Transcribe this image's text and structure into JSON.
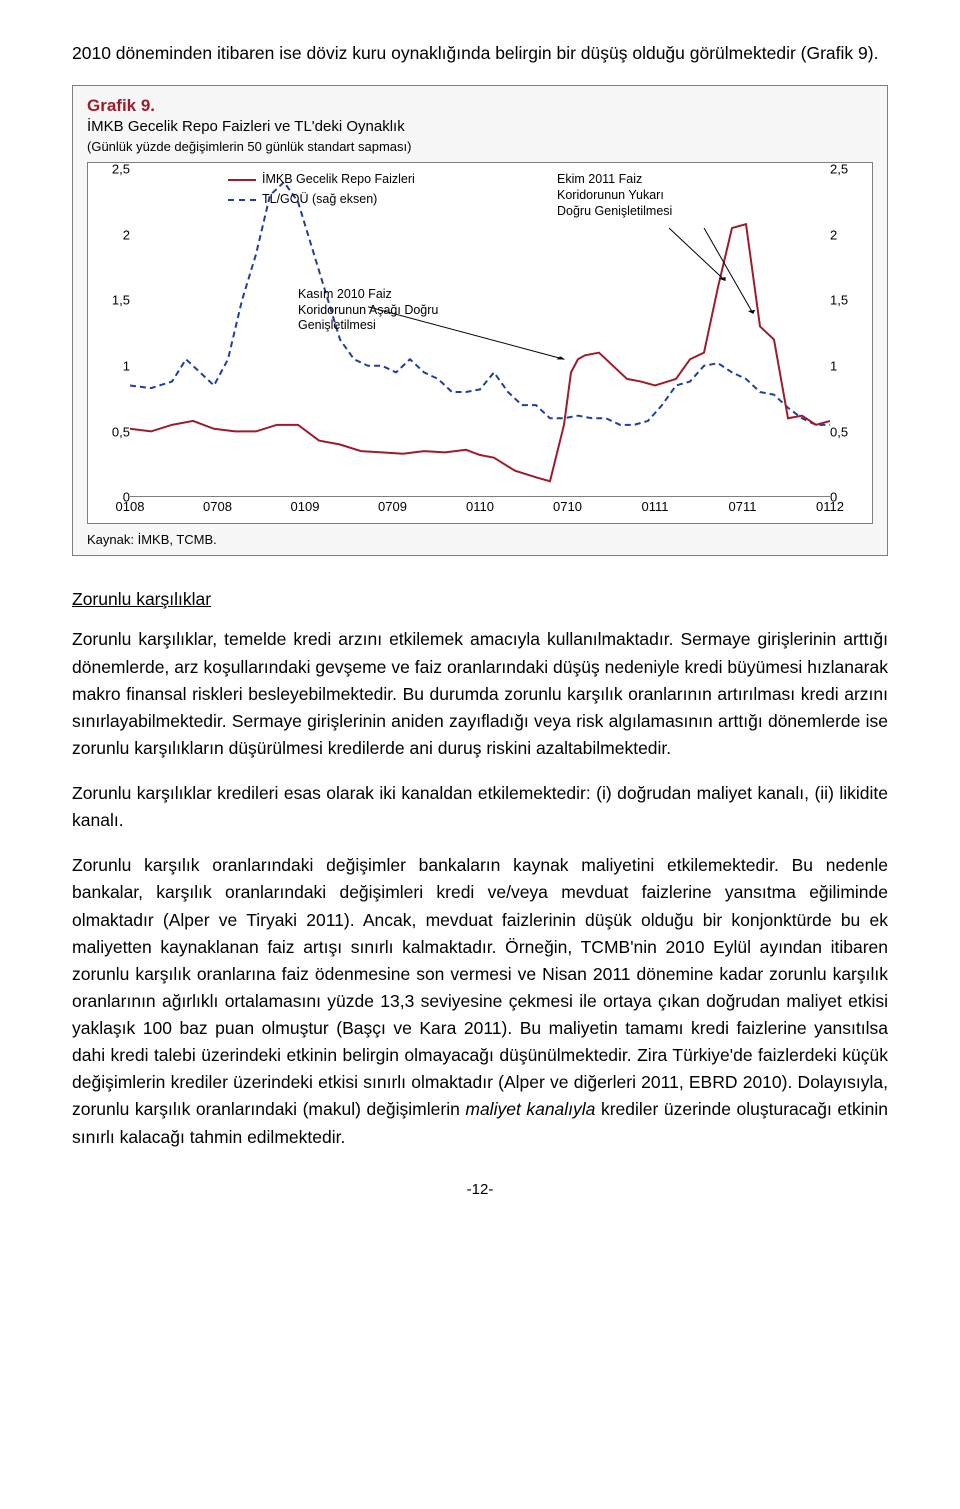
{
  "intro_para": "2010 döneminden itibaren ise döviz kuru oynaklığında belirgin bir düşüş olduğu görülmektedir (Grafik 9).",
  "chart": {
    "type": "line",
    "title": "Grafik 9.",
    "subtitle": "İMKB Gecelik Repo Faizleri ve TL'deki Oynaklık",
    "subsub": "(Günlük yüzde değişimlerin 50 günlük standart sapması)",
    "source": "Kaynak: İMKB, TCMB.",
    "background_color": "#ffffff",
    "card_background": "#f7f7f7",
    "border_color": "#7f7f7f",
    "title_color": "#9c1c2c",
    "ylim": [
      0,
      2.5
    ],
    "ytick_step": 0.5,
    "yticks": [
      "0",
      "0,5",
      "1",
      "1,5",
      "2",
      "2,5"
    ],
    "xticks": [
      "0108",
      "0708",
      "0109",
      "0709",
      "0110",
      "0710",
      "0111",
      "0711",
      "0112"
    ],
    "legend": {
      "series1": {
        "label": "İMKB Gecelik Repo Faizleri",
        "color": "#9c1c2c",
        "style": "solid"
      },
      "series2": {
        "label": "TL/GOÜ (sağ eksen)",
        "color": "#1f3f9c",
        "style": "dashed"
      }
    },
    "annotations": {
      "a1": "Ekim 2011 Faiz\nKoridorunun Yukarı\nDoğru Genişletilmesi",
      "a2": "Kasım 2010 Faiz\nKoridorunun Aşağı Doğru\nGenişletilmesi"
    },
    "line_width": 2,
    "series1_values": [
      [
        0,
        0.52
      ],
      [
        3,
        0.5
      ],
      [
        6,
        0.55
      ],
      [
        9,
        0.58
      ],
      [
        12,
        0.52
      ],
      [
        15,
        0.5
      ],
      [
        18,
        0.5
      ],
      [
        21,
        0.55
      ],
      [
        24,
        0.55
      ],
      [
        27,
        0.43
      ],
      [
        30,
        0.4
      ],
      [
        33,
        0.35
      ],
      [
        36,
        0.34
      ],
      [
        39,
        0.33
      ],
      [
        42,
        0.35
      ],
      [
        45,
        0.34
      ],
      [
        48,
        0.36
      ],
      [
        50,
        0.32
      ],
      [
        52,
        0.3
      ],
      [
        55,
        0.2
      ],
      [
        58,
        0.15
      ],
      [
        60,
        0.12
      ],
      [
        62,
        0.55
      ],
      [
        63,
        0.95
      ],
      [
        64,
        1.05
      ],
      [
        65,
        1.08
      ],
      [
        67,
        1.1
      ],
      [
        69,
        1.0
      ],
      [
        71,
        0.9
      ],
      [
        73,
        0.88
      ],
      [
        75,
        0.85
      ],
      [
        78,
        0.9
      ],
      [
        80,
        1.05
      ],
      [
        82,
        1.1
      ],
      [
        84,
        1.6
      ],
      [
        86,
        2.05
      ],
      [
        88,
        2.08
      ],
      [
        90,
        1.3
      ],
      [
        92,
        1.2
      ],
      [
        94,
        0.6
      ],
      [
        96,
        0.62
      ],
      [
        98,
        0.55
      ],
      [
        100,
        0.58
      ]
    ],
    "series2_values": [
      [
        0,
        0.85
      ],
      [
        3,
        0.83
      ],
      [
        6,
        0.88
      ],
      [
        8,
        1.05
      ],
      [
        10,
        0.95
      ],
      [
        12,
        0.85
      ],
      [
        14,
        1.05
      ],
      [
        16,
        1.5
      ],
      [
        18,
        1.85
      ],
      [
        20,
        2.3
      ],
      [
        22,
        2.4
      ],
      [
        24,
        2.25
      ],
      [
        26,
        1.9
      ],
      [
        28,
        1.55
      ],
      [
        30,
        1.2
      ],
      [
        32,
        1.05
      ],
      [
        34,
        1.0
      ],
      [
        36,
        1.0
      ],
      [
        38,
        0.95
      ],
      [
        40,
        1.05
      ],
      [
        42,
        0.95
      ],
      [
        44,
        0.9
      ],
      [
        46,
        0.8
      ],
      [
        48,
        0.8
      ],
      [
        50,
        0.82
      ],
      [
        52,
        0.95
      ],
      [
        54,
        0.8
      ],
      [
        56,
        0.7
      ],
      [
        58,
        0.7
      ],
      [
        60,
        0.6
      ],
      [
        62,
        0.6
      ],
      [
        64,
        0.62
      ],
      [
        66,
        0.6
      ],
      [
        68,
        0.6
      ],
      [
        70,
        0.55
      ],
      [
        72,
        0.55
      ],
      [
        74,
        0.58
      ],
      [
        76,
        0.7
      ],
      [
        78,
        0.85
      ],
      [
        80,
        0.88
      ],
      [
        82,
        1.0
      ],
      [
        84,
        1.02
      ],
      [
        86,
        0.95
      ],
      [
        88,
        0.9
      ],
      [
        90,
        0.8
      ],
      [
        92,
        0.78
      ],
      [
        94,
        0.68
      ],
      [
        96,
        0.6
      ],
      [
        98,
        0.55
      ],
      [
        100,
        0.55
      ]
    ],
    "arrows": [
      {
        "from": [
          34,
          1.45
        ],
        "to": [
          62,
          1.05
        ]
      },
      {
        "from": [
          77,
          2.05
        ],
        "to": [
          85,
          1.65
        ]
      },
      {
        "from": [
          82,
          2.05
        ],
        "to": [
          89,
          1.4
        ]
      }
    ],
    "arrow_color": "#000000"
  },
  "subhead": "Zorunlu karşılıklar",
  "para1": "Zorunlu karşılıklar, temelde kredi arzını etkilemek amacıyla kullanılmaktadır. Sermaye girişlerinin arttığı dönemlerde, arz koşullarındaki gevşeme ve faiz oranlarındaki düşüş nedeniyle kredi büyümesi hızlanarak makro finansal riskleri besleyebilmektedir. Bu durumda zorunlu karşılık oranlarının artırılması kredi arzını sınırlayabilmektedir. Sermaye girişlerinin aniden zayıfladığı veya risk algılamasının arttığı dönemlerde ise zorunlu karşılıkların düşürülmesi kredilerde ani duruş riskini azaltabilmektedir.",
  "para2": "Zorunlu karşılıklar kredileri esas olarak iki kanaldan etkilemektedir: (i) doğrudan maliyet kanalı, (ii) likidite kanalı.",
  "para3_a": "Zorunlu karşılık oranlarındaki değişimler bankaların kaynak maliyetini etkilemektedir. Bu nedenle bankalar, karşılık oranlarındaki değişimleri kredi ve/veya mevduat faizlerine yansıtma eğiliminde olmaktadır (Alper ve Tiryaki 2011). Ancak, mevduat faizlerinin düşük olduğu bir konjonktürde bu ek maliyetten kaynaklanan faiz artışı sınırlı kalmaktadır. Örneğin, TCMB'nin 2010 Eylül ayından itibaren zorunlu karşılık oranlarına faiz ödenmesine son vermesi ve Nisan 2011 dönemine kadar zorunlu karşılık oranlarının ağırlıklı ortalamasını yüzde 13,3 seviyesine çekmesi ile ortaya çıkan doğrudan maliyet etkisi yaklaşık 100 baz puan olmuştur (Başçı ve Kara 2011). Bu maliyetin tamamı kredi faizlerine yansıtılsa dahi kredi talebi üzerindeki etkinin belirgin olmayacağı düşünülmektedir. Zira Türkiye'de faizlerdeki küçük değişimlerin krediler üzerindeki etkisi sınırlı olmaktadır (Alper ve diğerleri 2011, EBRD 2010). Dolayısıyla, zorunlu karşılık oranlarındaki (makul) değişimlerin ",
  "para3_b": "maliyet kanalıyla",
  "para3_c": " krediler üzerinde oluşturacağı etkinin sınırlı kalacağı tahmin edilmektedir.",
  "page_number": "-12-"
}
